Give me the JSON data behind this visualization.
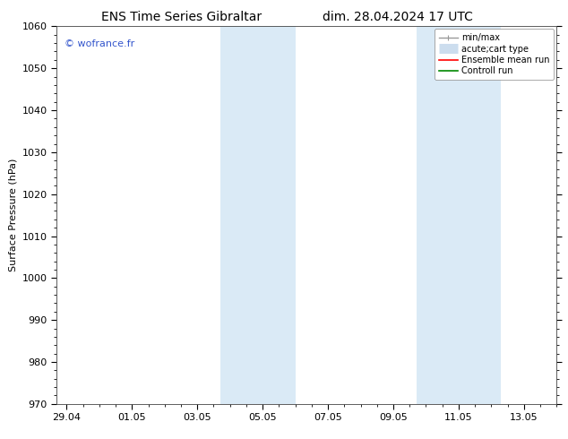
{
  "title_left": "ENS Time Series Gibraltar",
  "title_right": "dim. 28.04.2024 17 UTC",
  "ylabel": "Surface Pressure (hPa)",
  "ylim": [
    970,
    1060
  ],
  "yticks": [
    970,
    980,
    990,
    1000,
    1010,
    1020,
    1030,
    1040,
    1050,
    1060
  ],
  "xtick_labels": [
    "29.04",
    "01.05",
    "03.05",
    "05.05",
    "07.05",
    "09.05",
    "11.05",
    "13.05"
  ],
  "xtick_values": [
    0,
    2,
    4,
    6,
    8,
    10,
    12,
    14
  ],
  "xmin": -0.3,
  "xmax": 15.0,
  "shaded_regions": [
    {
      "xmin": 4.7,
      "xmax": 7.0
    },
    {
      "xmin": 10.7,
      "xmax": 13.3
    }
  ],
  "shade_color": "#daeaf6",
  "background_color": "#ffffff",
  "watermark_text": "© wofrance.fr",
  "watermark_color": "#3355cc",
  "legend_entries": [
    {
      "label": "min/max",
      "color": "#999999",
      "lw": 1.0,
      "ls": "-",
      "type": "errorbar"
    },
    {
      "label": "acute;cart type",
      "color": "#ccddee",
      "lw": 8,
      "ls": "-",
      "type": "thick"
    },
    {
      "label": "Ensemble mean run",
      "color": "#ff0000",
      "lw": 1.2,
      "ls": "-",
      "type": "line"
    },
    {
      "label": "Controll run",
      "color": "#008800",
      "lw": 1.2,
      "ls": "-",
      "type": "line"
    }
  ],
  "title_fontsize": 10,
  "label_fontsize": 8,
  "tick_fontsize": 8,
  "watermark_fontsize": 8,
  "legend_fontsize": 7
}
